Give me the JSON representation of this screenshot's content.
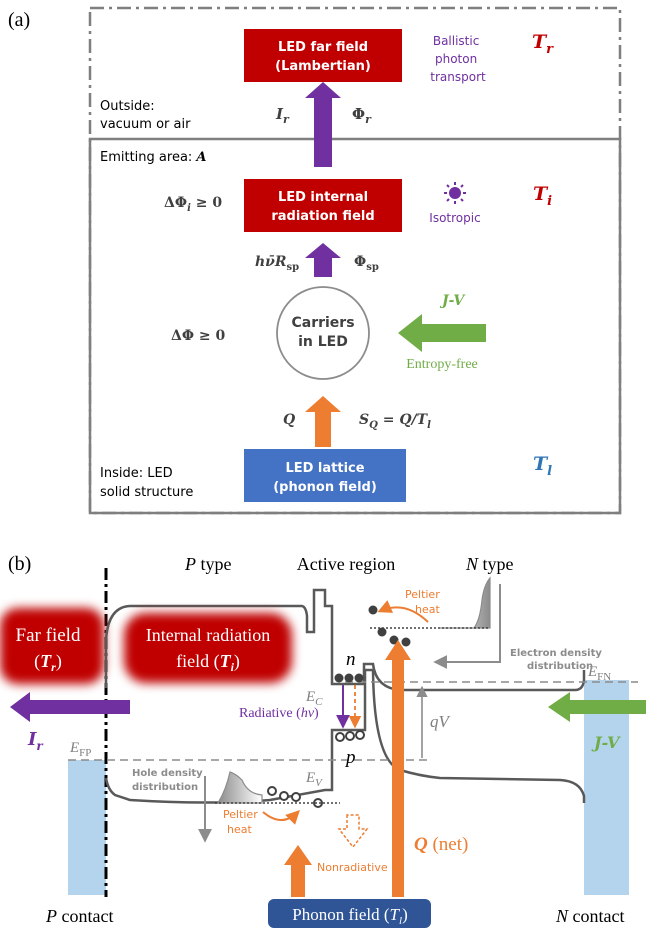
{
  "panel_a": {
    "label": "(a)",
    "far_field_box": {
      "line1": "LED far field",
      "line2": "(Lambertian)"
    },
    "ballistic_note": {
      "line1": "Ballistic",
      "line2": "photon",
      "line3": "transport"
    },
    "t_r": {
      "main": "T",
      "sub": "r"
    },
    "outside_note": {
      "line1": "Outside:",
      "line2": "vacuum or air"
    },
    "i_r": {
      "main": "I",
      "sub": "r"
    },
    "phi_r": {
      "main": "Φ",
      "sub": "r"
    },
    "emitting_area": {
      "text": "Emitting area: ",
      "symbol": "A"
    },
    "delta_phi_i": {
      "pre": "ΔΦ",
      "sub": "i",
      "post": " ≥ 0"
    },
    "internal_box": {
      "line1": "LED internal",
      "line2": "radiation field"
    },
    "isotropic": "Isotropic",
    "t_i": {
      "main": "T",
      "sub": "i"
    },
    "h_r_sp": {
      "main": "hν̄R",
      "sub": "sp"
    },
    "phi_sp": {
      "main": "Φ",
      "sub": "sp"
    },
    "delta_phi": "ΔΦ ≥ 0",
    "carriers": {
      "line1": "Carriers",
      "line2": "in LED"
    },
    "jv": "J-V",
    "entropy_free": "Entropy-free",
    "q": "Q",
    "s_q": {
      "main": "S",
      "sub": "Q",
      "mid": " = Q/T",
      "sub2": "l"
    },
    "inside_note": {
      "line1": "Inside: LED",
      "line2": "solid structure"
    },
    "lattice_box": {
      "line1": "LED lattice",
      "line2": "(phonon field)"
    },
    "t_l": {
      "main": "T",
      "sub": "l"
    }
  },
  "panel_b": {
    "label": "(b)",
    "p_type": {
      "letter": "P",
      "rest": " type"
    },
    "active_region": "Active region",
    "n_type": {
      "letter": "N",
      "rest": " type"
    },
    "peltier_top": {
      "line1": "Peltier",
      "line2": "heat"
    },
    "electron_density": {
      "line1": "Electron density",
      "line2": "distribution"
    },
    "far_field": {
      "line1": "Far field",
      "open": "(",
      "main": "T",
      "sub": "r",
      "close": ")"
    },
    "internal_field": {
      "line1": "Internal radiation",
      "line2": "field (",
      "main": "T",
      "sub": "i",
      "close": ")"
    },
    "n_carrier": "n",
    "p_carrier": "p",
    "ec": {
      "main": "E",
      "sub": "C"
    },
    "ev": {
      "main": "E",
      "sub": "V"
    },
    "efn": {
      "main": "E",
      "sub": "FN"
    },
    "efp": {
      "main": "E",
      "sub": "FP"
    },
    "radiative": {
      "text": "Radiative (",
      "sym": "hν",
      "close": ")"
    },
    "qv": "qV",
    "i_r": {
      "main": "I",
      "sub": "r"
    },
    "jv": "J-V",
    "hole_density": {
      "line1": "Hole density",
      "line2": "distribution"
    },
    "peltier_bottom": {
      "line1": "Peltier",
      "line2": "heat"
    },
    "nonradiative": "Nonradiative",
    "q_net": {
      "main": "Q",
      "rest": " (net)"
    },
    "p_contact": {
      "letter": "P",
      "rest": " contact"
    },
    "phonon_field": {
      "text": "Phonon field (",
      "main": "T",
      "sub": "l",
      "close": ")"
    },
    "n_contact": {
      "letter": "N",
      "rest": " contact"
    }
  },
  "colors": {
    "red_box": "#c00000",
    "blue_box": "#4472c4",
    "purple": "#7030a0",
    "green": "#70ad47",
    "orange": "#ed7d31",
    "gray_frame": "#7f7f7f",
    "contact_blue": "#b4d4ee",
    "phonon_box": "#2f5597"
  }
}
